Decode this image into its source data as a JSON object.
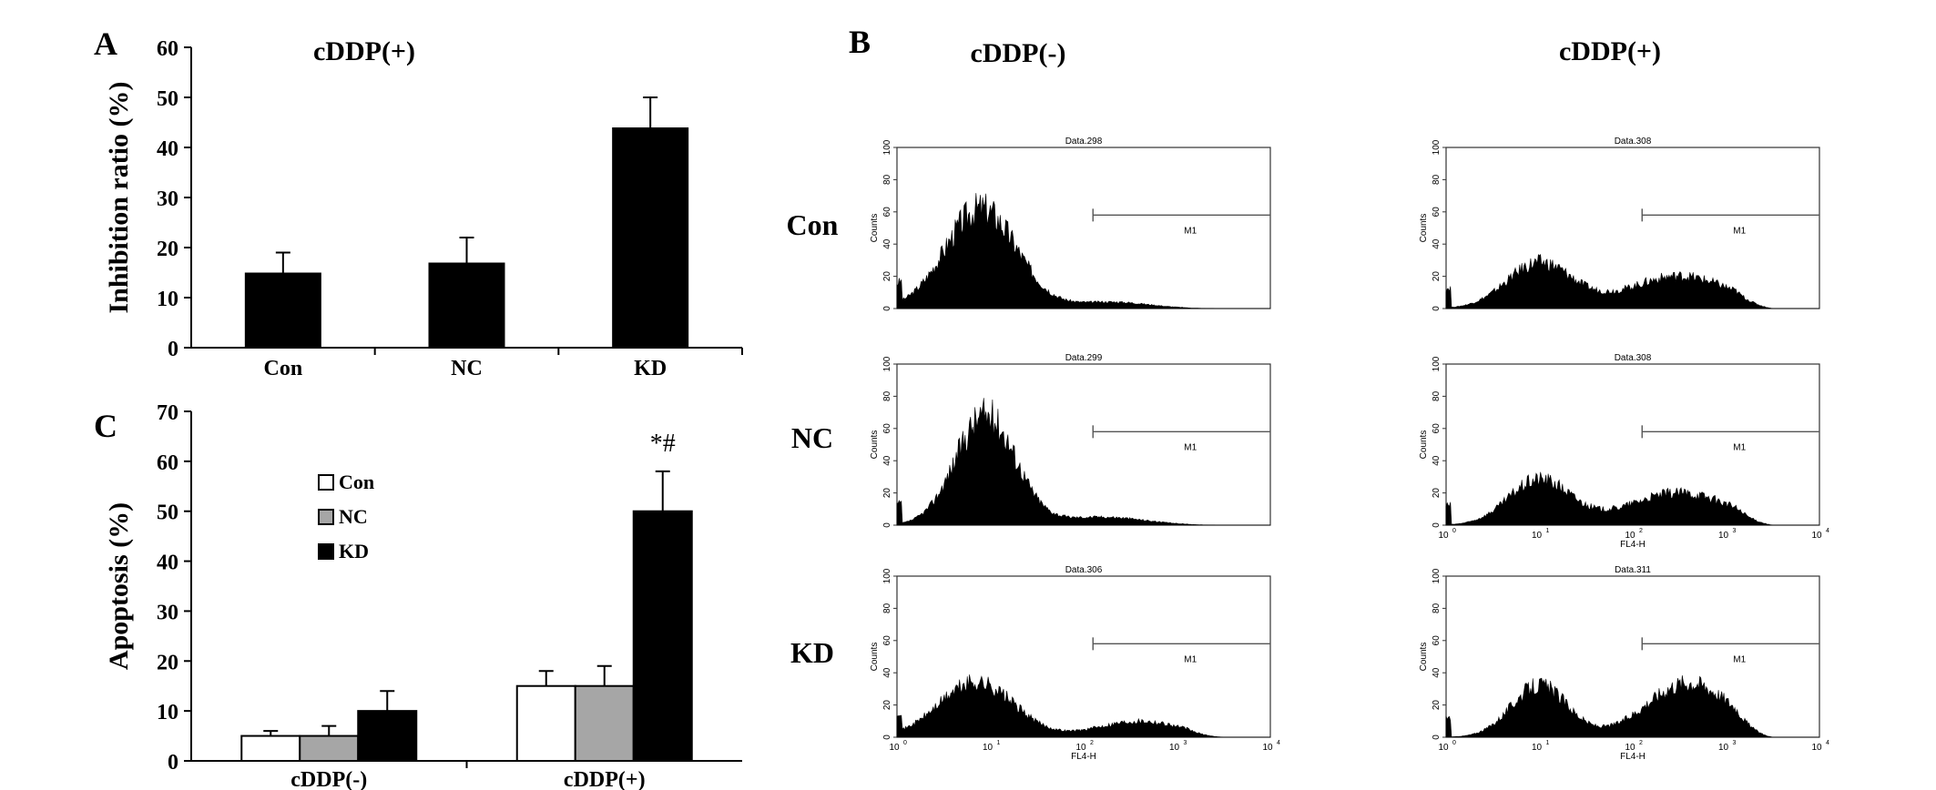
{
  "chart_data": [
    {
      "panel": "A",
      "type": "bar",
      "title": "cDDP(+)",
      "ylabel": "Inhibition ratio (%)",
      "ylim": [
        0,
        60
      ],
      "yticks": [
        "0",
        "10",
        "20",
        "30",
        "40",
        "50",
        "60"
      ],
      "categories": [
        "Con",
        "NC",
        "KD"
      ],
      "values": [
        15,
        17,
        44
      ],
      "errors": [
        4,
        5,
        6
      ],
      "bar_color": "#000000"
    },
    {
      "panel": "C",
      "type": "bar",
      "ylabel": "Apoptosis (%)",
      "ylim": [
        0,
        70
      ],
      "yticks": [
        "0",
        "10",
        "20",
        "30",
        "40",
        "50",
        "60",
        "70"
      ],
      "categories": [
        "cDDP(-)",
        "cDDP(+)"
      ],
      "series": [
        {
          "name": "Con",
          "color": "#ffffff",
          "values": [
            5,
            15
          ],
          "errors": [
            1,
            3
          ]
        },
        {
          "name": "NC",
          "color": "#a6a6a6",
          "values": [
            5,
            15
          ],
          "errors": [
            2,
            4
          ]
        },
        {
          "name": "KD",
          "color": "#000000",
          "values": [
            10,
            50
          ],
          "errors": [
            4,
            8
          ]
        }
      ],
      "annotation": "*#"
    },
    {
      "panel": "B",
      "type": "area",
      "column_titles": [
        "cDDP(-)",
        "cDDP(+)"
      ],
      "row_labels": [
        "Con",
        "NC",
        "KD"
      ],
      "ylabel": "Counts",
      "xlabel": "FL4-H",
      "yticks": [
        "0",
        "20",
        "40",
        "60",
        "80",
        "100"
      ],
      "xticks": [
        "10",
        "10",
        "10",
        "10",
        "10"
      ],
      "xtick_exponents": [
        "0",
        "1",
        "2",
        "3",
        "4"
      ],
      "x_scale": "log",
      "gate_label": "M1",
      "histograms": [
        {
          "title": "Data.298",
          "peaks": [
            {
              "center": 0.9,
              "height": 62,
              "width": 0.38
            },
            {
              "center": 2.3,
              "height": 4,
              "width": 0.4
            }
          ],
          "gate_from": 2.1
        },
        {
          "title": "Data.308",
          "peaks": [
            {
              "center": 1.0,
              "height": 28,
              "width": 0.35
            },
            {
              "center": 2.5,
              "height": 20,
              "width": 0.55
            }
          ],
          "gate_from": 2.1
        },
        {
          "title": "Data.299",
          "peaks": [
            {
              "center": 0.95,
              "height": 68,
              "width": 0.32
            },
            {
              "center": 2.2,
              "height": 5,
              "width": 0.45
            }
          ],
          "gate_from": 2.1
        },
        {
          "title": "Data.308",
          "peaks": [
            {
              "center": 1.0,
              "height": 28,
              "width": 0.33
            },
            {
              "center": 2.5,
              "height": 20,
              "width": 0.55
            }
          ],
          "gate_from": 2.1
        },
        {
          "title": "Data.306",
          "peaks": [
            {
              "center": 0.85,
              "height": 34,
              "width": 0.4
            },
            {
              "center": 2.6,
              "height": 10,
              "width": 0.45
            }
          ],
          "gate_from": 2.1
        },
        {
          "title": "Data.311",
          "peaks": [
            {
              "center": 1.0,
              "height": 32,
              "width": 0.3
            },
            {
              "center": 2.6,
              "height": 34,
              "width": 0.45
            }
          ],
          "gate_from": 2.1
        }
      ]
    }
  ],
  "panels": {
    "a": "A",
    "b": "B",
    "c": "C"
  }
}
